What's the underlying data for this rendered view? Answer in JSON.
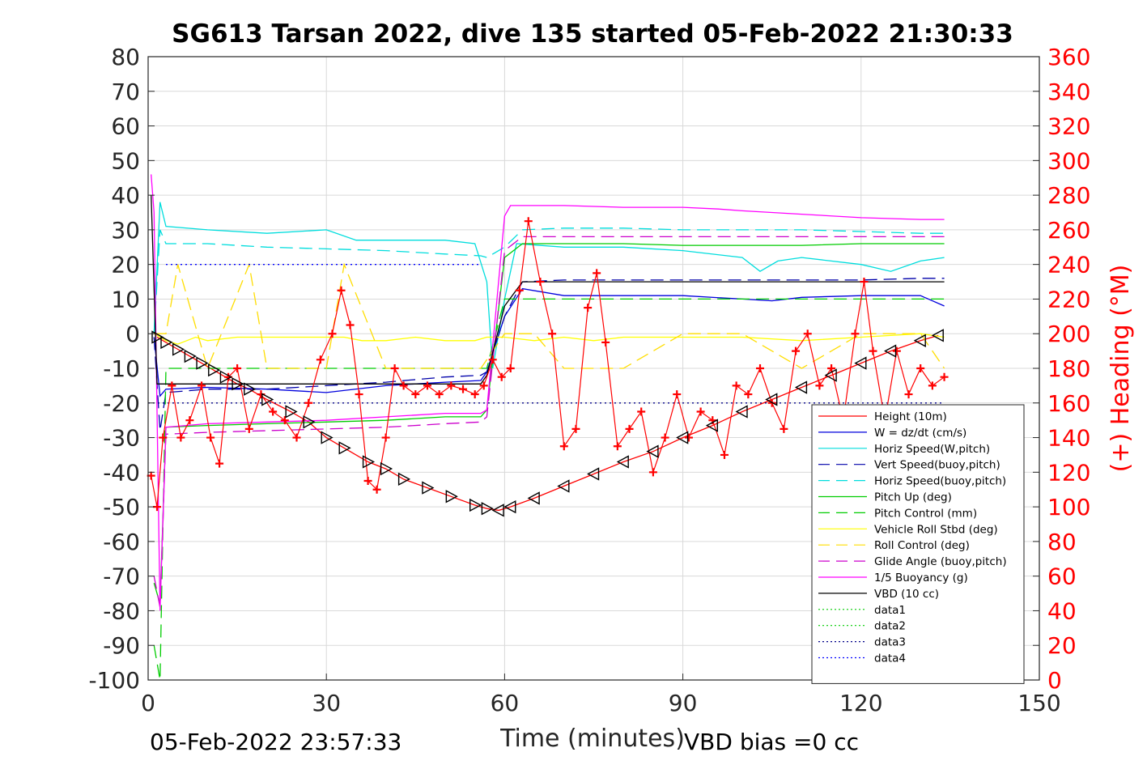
{
  "chart_data": {
    "type": "line",
    "title": "SG613 Tarsan 2022, dive 135 started 05-Feb-2022 21:30:33",
    "xlabel": "Time (minutes)",
    "ylabel": "",
    "y2label": "(+) Heading (°M)",
    "xlim": [
      0,
      150
    ],
    "ylim": [
      -100,
      80
    ],
    "y2lim": [
      0,
      360
    ],
    "xticks": [
      0,
      30,
      60,
      90,
      120,
      150
    ],
    "yticks": [
      80,
      70,
      60,
      50,
      40,
      30,
      20,
      10,
      0,
      -10,
      -20,
      -30,
      -40,
      -50,
      -60,
      -70,
      -80,
      -90,
      -100
    ],
    "y2ticks": [
      360,
      340,
      320,
      300,
      280,
      260,
      240,
      220,
      200,
      180,
      160,
      140,
      120,
      100,
      80,
      60,
      40,
      20,
      0
    ],
    "grid": true,
    "legend_position": "bottom-right",
    "footer_left": "05-Feb-2022 23:57:33",
    "footer_right": "VBD bias =0 cc",
    "series": [
      {
        "name": "Height (10m)",
        "color": "#ff0000",
        "style": "solid",
        "marker": "triangle",
        "x": [
          1.5,
          3,
          5,
          7,
          9,
          11,
          13,
          15,
          17,
          20,
          24,
          27,
          30,
          33,
          37,
          40,
          43,
          47,
          51,
          55,
          57,
          59,
          61,
          65,
          70,
          75,
          80,
          85,
          90,
          95,
          100,
          105,
          110,
          115,
          120,
          125,
          130,
          133
        ],
        "y": [
          -1,
          -2.5,
          -4.5,
          -6.5,
          -8.5,
          -10.5,
          -12.5,
          -14.5,
          -16,
          -19,
          -22.5,
          -25.5,
          -30,
          -33,
          -37,
          -39,
          -42,
          -44.5,
          -47,
          -49.5,
          -50.5,
          -51,
          -50,
          -47.5,
          -44,
          -40.5,
          -37,
          -34,
          -30,
          -26.5,
          -22.5,
          -19,
          -15.5,
          -12,
          -8.5,
          -5,
          -2,
          -0.5
        ]
      },
      {
        "name": "W = dz/dt (cm/s)",
        "color": "#0000dd",
        "style": "solid",
        "x": [
          1,
          2,
          3,
          10,
          20,
          30,
          40,
          50,
          56,
          57,
          60,
          63,
          70,
          80,
          90,
          100,
          105,
          110,
          120,
          130,
          134
        ],
        "y": [
          -1,
          -18,
          -16,
          -15.5,
          -16,
          -17,
          -15,
          -14,
          -13.5,
          -11,
          5,
          13,
          11,
          11,
          11,
          10,
          9.5,
          10.5,
          11,
          11,
          8
        ]
      },
      {
        "name": "Horiz Speed(W,pitch)",
        "color": "#00dddd",
        "style": "solid",
        "x": [
          1,
          2,
          3,
          10,
          20,
          30,
          35,
          40,
          45,
          50,
          55,
          57,
          58,
          60,
          62,
          70,
          80,
          90,
          100,
          103,
          106,
          110,
          120,
          125,
          130,
          134
        ],
        "y": [
          0,
          38,
          31,
          30,
          29,
          30,
          27,
          27,
          27,
          27,
          26,
          15,
          -10,
          10,
          26,
          25,
          25,
          24,
          22,
          18,
          21,
          22,
          20,
          18,
          21,
          22
        ]
      },
      {
        "name": "Vert Speed(buoy,pitch)",
        "color": "#0000aa",
        "style": "dashed",
        "x": [
          1,
          2,
          3,
          10,
          20,
          30,
          40,
          50,
          56,
          57,
          60,
          63,
          70,
          80,
          90,
          100,
          110,
          120,
          130,
          134
        ],
        "y": [
          -1,
          -28,
          -17,
          -16,
          -16,
          -15,
          -14,
          -12.5,
          -12,
          -11,
          5,
          15,
          15.5,
          15.5,
          15.5,
          15.5,
          15.5,
          15.5,
          16,
          16
        ]
      },
      {
        "name": "Horiz Speed(buoy,pitch)",
        "color": "#00dddd",
        "style": "dashed",
        "x": [
          1,
          2,
          3,
          10,
          20,
          30,
          40,
          50,
          56,
          57,
          60,
          63,
          70,
          80,
          90,
          100,
          110,
          120,
          130,
          134
        ],
        "y": [
          0,
          30,
          26,
          26,
          25,
          24.5,
          24,
          23,
          22.5,
          22,
          25,
          30,
          30.5,
          30.5,
          30,
          30,
          30,
          29.5,
          29,
          29
        ]
      },
      {
        "name": "Pitch Up (deg)",
        "color": "#00cc00",
        "style": "solid",
        "x": [
          1,
          2,
          3,
          10,
          20,
          30,
          40,
          50,
          56,
          57,
          60,
          63,
          70,
          80,
          90,
          100,
          110,
          120,
          130,
          134
        ],
        "y": [
          -72,
          -78,
          -27,
          -26.5,
          -26,
          -25.5,
          -25,
          -24,
          -24,
          -22,
          22,
          26,
          26,
          26,
          25.5,
          25.5,
          25.5,
          26,
          26,
          26
        ]
      },
      {
        "name": "Pitch Control (mm)",
        "color": "#00cc00",
        "style": "dashed",
        "x": [
          1,
          2,
          3,
          10,
          20,
          30,
          40,
          50,
          56,
          57,
          60,
          63,
          70,
          80,
          90,
          100,
          110,
          120,
          130,
          134
        ],
        "y": [
          -90,
          -100,
          -10,
          -10,
          -10,
          -10,
          -10,
          -10,
          -10,
          -10,
          10,
          10,
          10,
          10,
          10,
          10,
          10,
          10,
          10,
          10
        ]
      },
      {
        "name": "Vehicle Roll Stbd (deg)",
        "color": "#ffff00",
        "style": "solid",
        "x": [
          1,
          3,
          5,
          8,
          10,
          15,
          20,
          25,
          30,
          33,
          36,
          40,
          45,
          50,
          55,
          57,
          60,
          65,
          70,
          75,
          80,
          90,
          100,
          110,
          120,
          130,
          134
        ],
        "y": [
          0,
          -2,
          -3,
          -1,
          -2,
          -1,
          -1,
          -1,
          -1,
          -1,
          -2,
          -2,
          -1,
          -2,
          -2,
          -1,
          -1,
          -2,
          -1,
          -2,
          -1,
          -1,
          -1,
          -2,
          -1,
          0,
          -1
        ]
      },
      {
        "name": "Roll Control (deg)",
        "color": "#ffdd00",
        "style": "dashed",
        "x": [
          1,
          3,
          5,
          10,
          17,
          20,
          30,
          33,
          40,
          50,
          56,
          60,
          65,
          70,
          80,
          90,
          100,
          110,
          120,
          130,
          134
        ],
        "y": [
          0,
          0,
          20,
          -10,
          20,
          -10,
          -10,
          20,
          -10,
          -10,
          -10,
          0,
          0,
          -10,
          -10,
          0,
          0,
          -10,
          0,
          0,
          -10
        ]
      },
      {
        "name": "Glide Angle (buoy,pitch)",
        "color": "#cc00cc",
        "style": "dashed",
        "x": [
          1,
          2,
          3,
          10,
          20,
          30,
          40,
          50,
          56,
          57,
          60,
          63,
          70,
          80,
          90,
          100,
          110,
          120,
          130,
          134
        ],
        "y": [
          -70,
          -79,
          -29,
          -28.5,
          -28,
          -27.5,
          -27,
          -26,
          -25.5,
          -24,
          24,
          28,
          28,
          28,
          28,
          28,
          28,
          28,
          28,
          28
        ]
      },
      {
        "name": "1/5 Buoyancy (g)",
        "color": "#ff00ff",
        "style": "solid",
        "x": [
          0.5,
          1,
          2,
          3,
          10,
          20,
          30,
          40,
          50,
          56,
          57,
          60,
          61,
          70,
          80,
          90,
          96,
          100,
          110,
          120,
          130,
          134
        ],
        "y": [
          46,
          35,
          -80,
          -27,
          -26,
          -25.5,
          -25,
          -24,
          -23,
          -23,
          -22,
          34,
          37,
          37,
          36.5,
          36.5,
          36,
          35.5,
          34.5,
          33.5,
          33,
          33
        ]
      },
      {
        "name": "VBD (10 cc)",
        "color": "#000000",
        "style": "solid",
        "x": [
          0.5,
          1.5,
          3,
          10,
          20,
          30,
          40,
          50,
          56,
          57,
          60,
          63,
          70,
          80,
          90,
          100,
          110,
          120,
          130,
          134
        ],
        "y": [
          40,
          -14.5,
          -14.5,
          -14.5,
          -14.5,
          -14.5,
          -14.5,
          -14.5,
          -14.5,
          -12,
          8,
          15,
          15,
          15,
          15,
          15,
          15,
          15,
          15,
          15
        ]
      },
      {
        "name": "data1",
        "color": "#00cc00",
        "style": "dotted",
        "x": [],
        "y": []
      },
      {
        "name": "data2",
        "color": "#00cc00",
        "style": "dotted",
        "x": [],
        "y": []
      },
      {
        "name": "data3",
        "color": "#000088",
        "style": "dotted",
        "x": [
          0,
          134
        ],
        "y": [
          -20,
          -20
        ]
      },
      {
        "name": "data4",
        "color": "#0000ff",
        "style": "dotted",
        "x": [
          3,
          56
        ],
        "y": [
          20,
          20
        ]
      }
    ],
    "heading": {
      "name": "(+) Heading (°M)",
      "axis": "right",
      "color": "#ff0000",
      "marker": "plus",
      "x": [
        0.5,
        1.5,
        2.5,
        4,
        5.5,
        7,
        9,
        10.5,
        12,
        13.5,
        15,
        17,
        19,
        21,
        23,
        25,
        27,
        29,
        31,
        32.5,
        34,
        35.5,
        37,
        38.5,
        40,
        41.5,
        43,
        45,
        47,
        49,
        51,
        53,
        55,
        56.5,
        58,
        59.5,
        61,
        62.5,
        64,
        66,
        68,
        70,
        72,
        74,
        75.5,
        77,
        79,
        81,
        83,
        85,
        87,
        89,
        91,
        93,
        95,
        97,
        99,
        101,
        103,
        105,
        107,
        109,
        111,
        113,
        115,
        117,
        119,
        120.5,
        122,
        124,
        126,
        128,
        130,
        132,
        134
      ],
      "y": [
        118,
        100,
        140,
        170,
        140,
        150,
        170,
        140,
        125,
        175,
        180,
        145,
        165,
        155,
        150,
        140,
        160,
        185,
        200,
        225,
        205,
        165,
        115,
        110,
        140,
        180,
        170,
        165,
        170,
        165,
        170,
        168,
        165,
        170,
        185,
        175,
        180,
        225,
        265,
        230,
        200,
        135,
        145,
        215,
        235,
        195,
        135,
        145,
        155,
        120,
        140,
        165,
        140,
        155,
        150,
        130,
        170,
        165,
        180,
        160,
        145,
        190,
        200,
        170,
        180,
        150,
        200,
        230,
        190,
        150,
        190,
        165,
        180,
        170,
        175
      ]
    }
  }
}
